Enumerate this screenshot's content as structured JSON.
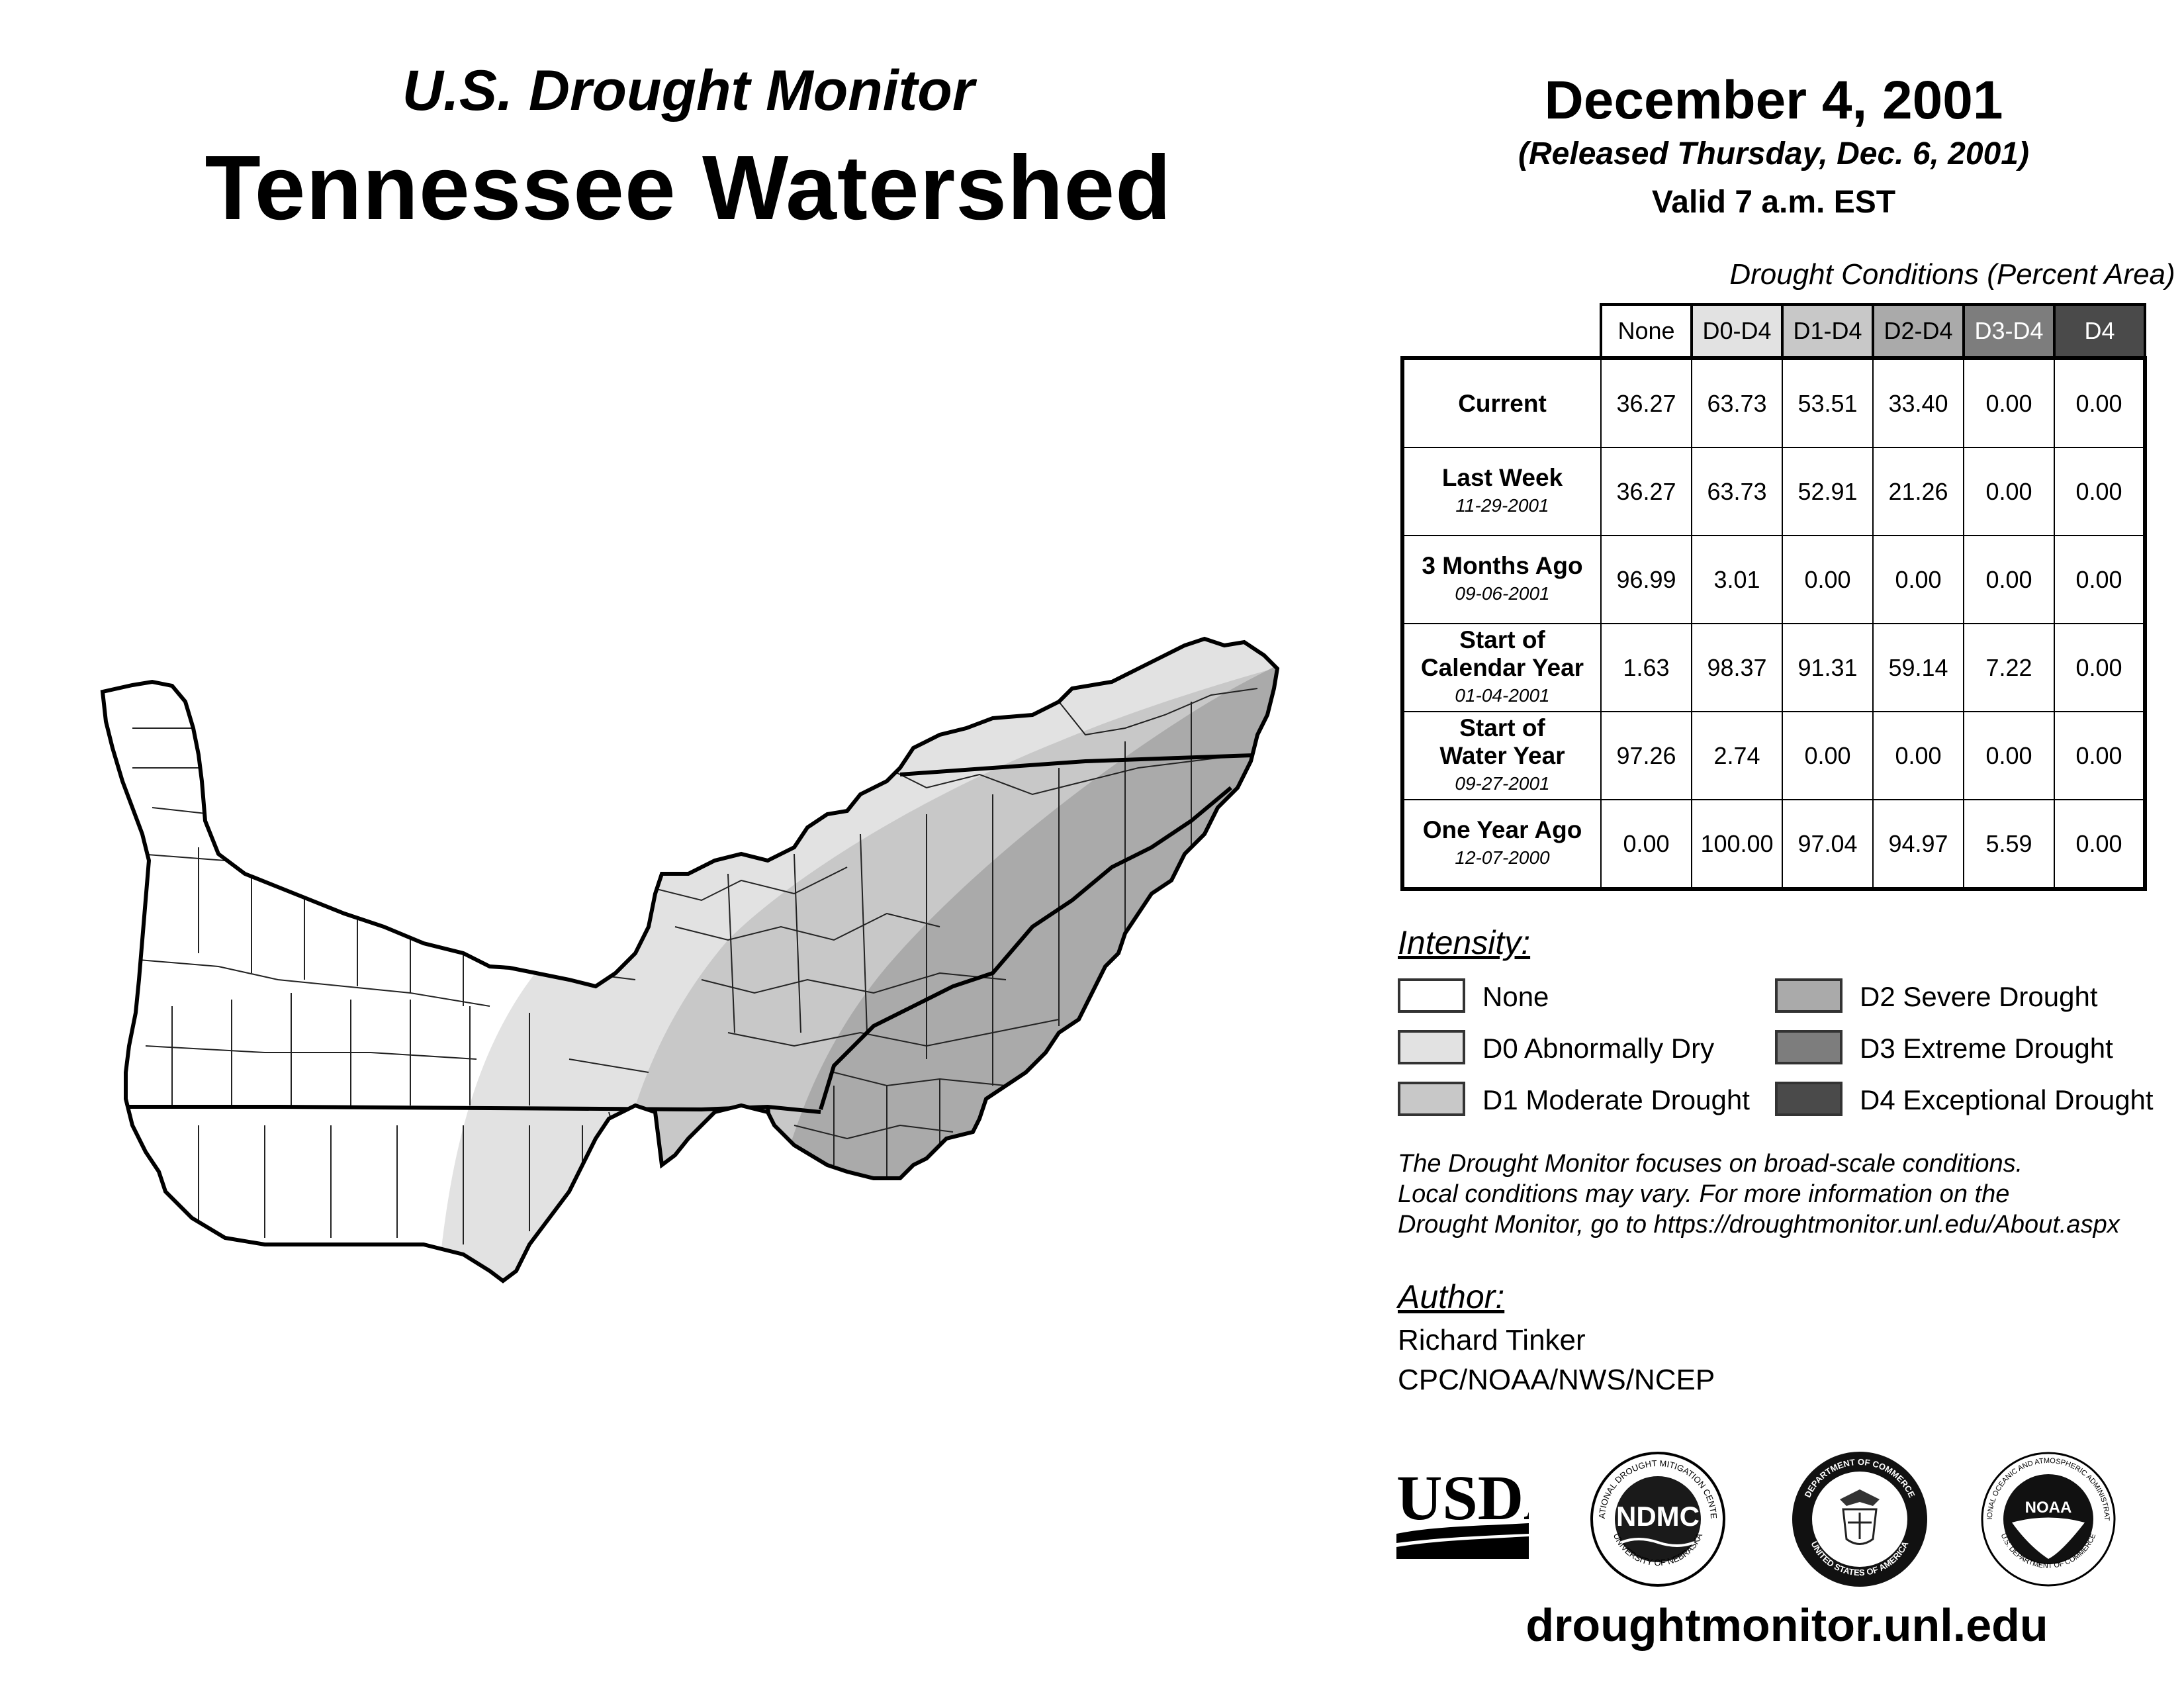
{
  "header": {
    "subtitle": "U.S. Drought Monitor",
    "title": "Tennessee Watershed",
    "date": "December 4, 2001",
    "released": "(Released Thursday, Dec. 6, 2001)",
    "valid": "Valid 7 a.m. EST"
  },
  "table": {
    "caption": "Drought Conditions (Percent Area)",
    "columns": [
      "None",
      "D0-D4",
      "D1-D4",
      "D2-D4",
      "D3-D4",
      "D4"
    ],
    "rows": [
      {
        "label": "Current",
        "date": "",
        "values": [
          "36.27",
          "63.73",
          "53.51",
          "33.40",
          "0.00",
          "0.00"
        ]
      },
      {
        "label": "Last Week",
        "date": "11-29-2001",
        "values": [
          "36.27",
          "63.73",
          "52.91",
          "21.26",
          "0.00",
          "0.00"
        ]
      },
      {
        "label": "3 Months Ago",
        "date": "09-06-2001",
        "values": [
          "96.99",
          "3.01",
          "0.00",
          "0.00",
          "0.00",
          "0.00"
        ]
      },
      {
        "label": "Start of Calendar Year",
        "date": "01-04-2001",
        "values": [
          "1.63",
          "98.37",
          "91.31",
          "59.14",
          "7.22",
          "0.00"
        ]
      },
      {
        "label": "Start of Water Year",
        "date": "09-27-2001",
        "values": [
          "97.26",
          "2.74",
          "0.00",
          "0.00",
          "0.00",
          "0.00"
        ]
      },
      {
        "label": "One Year Ago",
        "date": "12-07-2000",
        "values": [
          "0.00",
          "100.00",
          "97.04",
          "94.97",
          "5.59",
          "0.00"
        ]
      }
    ]
  },
  "legend": {
    "title": "Intensity:",
    "items": [
      {
        "label": "None",
        "color": "#ffffff"
      },
      {
        "label": "D0 Abnormally Dry",
        "color": "#e2e2e2"
      },
      {
        "label": "D1 Moderate Drought",
        "color": "#c8c8c8"
      },
      {
        "label": "D2 Severe Drought",
        "color": "#aaaaaa"
      },
      {
        "label": "D3 Extreme Drought",
        "color": "#7d7d7d"
      },
      {
        "label": "D4 Exceptional Drought",
        "color": "#4a4a4a"
      }
    ]
  },
  "note": {
    "line1": "The Drought Monitor focuses on broad-scale conditions.",
    "line2": "Local conditions may vary. For more information on the",
    "line3": "Drought Monitor, go to https://droughtmonitor.unl.edu/About.aspx"
  },
  "author": {
    "title": "Author:",
    "name": "Richard Tinker",
    "org": "CPC/NOAA/NWS/NCEP"
  },
  "logos": {
    "usda": "USDA",
    "ndmc": "NDMC",
    "ndmc_ring": "NATIONAL DROUGHT MITIGATION CENTER",
    "ndmc_ring_bottom": "UNIVERSITY OF NEBRASKA",
    "doc_ring": "DEPARTMENT OF COMMERCE",
    "doc_ring_bottom": "UNITED STATES OF AMERICA",
    "noaa": "NOAA",
    "noaa_ring": "NATIONAL OCEANIC AND ATMOSPHERIC ADMINISTRATION",
    "noaa_ring_bottom": "U.S. DEPARTMENT OF COMMERCE"
  },
  "site": "droughtmonitor.unl.edu",
  "map": {
    "region": "Tennessee Watershed",
    "categories_shown": [
      "None",
      "D0",
      "D1",
      "D2"
    ]
  }
}
